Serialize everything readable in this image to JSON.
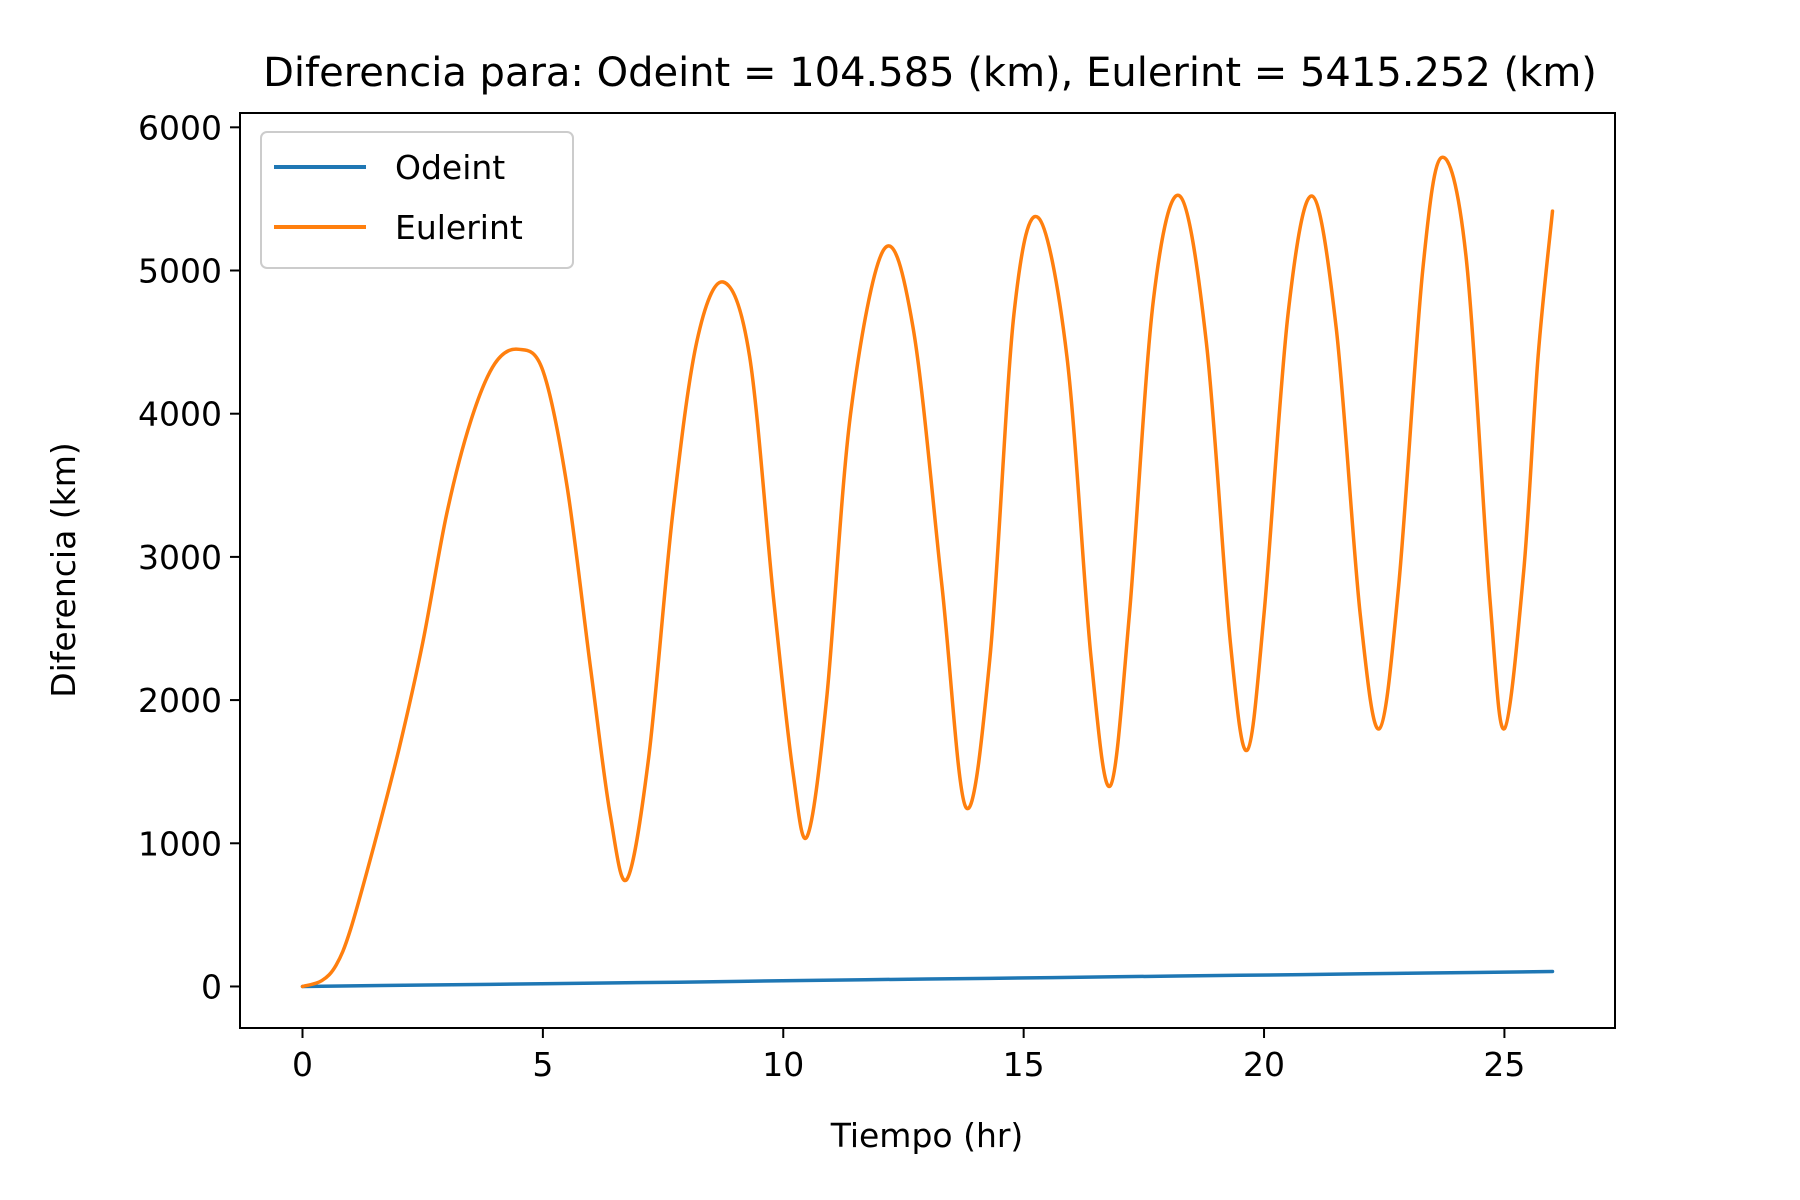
{
  "chart_data": {
    "type": "line",
    "title": "Diferencia para: Odeint = 104.585 (km), Eulerint = 5415.252 (km)",
    "xlabel": "Tiempo (hr)",
    "ylabel": "Diferencia (km)",
    "xlim": [
      -1.3,
      27.3
    ],
    "ylim": [
      -290,
      6100
    ],
    "x_ticks": [
      0,
      5,
      10,
      15,
      20,
      25
    ],
    "x_tick_labels": [
      "0",
      "5",
      "10",
      "15",
      "20",
      "25"
    ],
    "y_ticks": [
      0,
      1000,
      2000,
      3000,
      4000,
      5000,
      6000
    ],
    "y_tick_labels": [
      "0",
      "1000",
      "2000",
      "3000",
      "4000",
      "5000",
      "6000"
    ],
    "grid": false,
    "legend_position": "top-left",
    "series": [
      {
        "name": "Odeint",
        "color": "#1f77b4",
        "x": [
          0,
          2.6,
          5.2,
          7.8,
          10.4,
          13.0,
          15.6,
          18.2,
          20.8,
          23.4,
          26.0
        ],
        "y": [
          0,
          10,
          20,
          30,
          42,
          52,
          62,
          73,
          83,
          94,
          104.585
        ]
      },
      {
        "name": "Eulerint",
        "color": "#ff7f0e",
        "x": [
          0,
          0.4,
          0.7,
          1.0,
          1.5,
          2.0,
          2.5,
          3.0,
          3.5,
          4.0,
          4.5,
          5.0,
          5.5,
          6.0,
          6.4,
          6.75,
          7.2,
          7.7,
          8.2,
          8.75,
          9.3,
          9.8,
          10.2,
          10.5,
          10.9,
          11.4,
          12.1,
          12.7,
          13.3,
          13.8,
          14.3,
          14.8,
          15.3,
          15.9,
          16.4,
          16.8,
          17.2,
          17.7,
          18.25,
          18.8,
          19.3,
          19.65,
          20.0,
          20.5,
          21.0,
          21.5,
          22.0,
          22.4,
          22.8,
          23.3,
          23.7,
          24.2,
          24.7,
          25.0,
          25.4,
          25.7,
          26.0
        ],
        "y": [
          0,
          40,
          150,
          400,
          1000,
          1650,
          2400,
          3300,
          3950,
          4350,
          4450,
          4300,
          3500,
          2200,
          1200,
          750,
          1600,
          3300,
          4500,
          4920,
          4400,
          2700,
          1500,
          1050,
          2000,
          4000,
          5150,
          4600,
          2800,
          1250,
          2300,
          4700,
          5370,
          4400,
          2300,
          1400,
          2600,
          4800,
          5520,
          4500,
          2400,
          1650,
          2600,
          4700,
          5520,
          4600,
          2600,
          1800,
          2800,
          5000,
          5790,
          5100,
          2700,
          1800,
          2900,
          4400,
          5415.252
        ]
      }
    ]
  }
}
